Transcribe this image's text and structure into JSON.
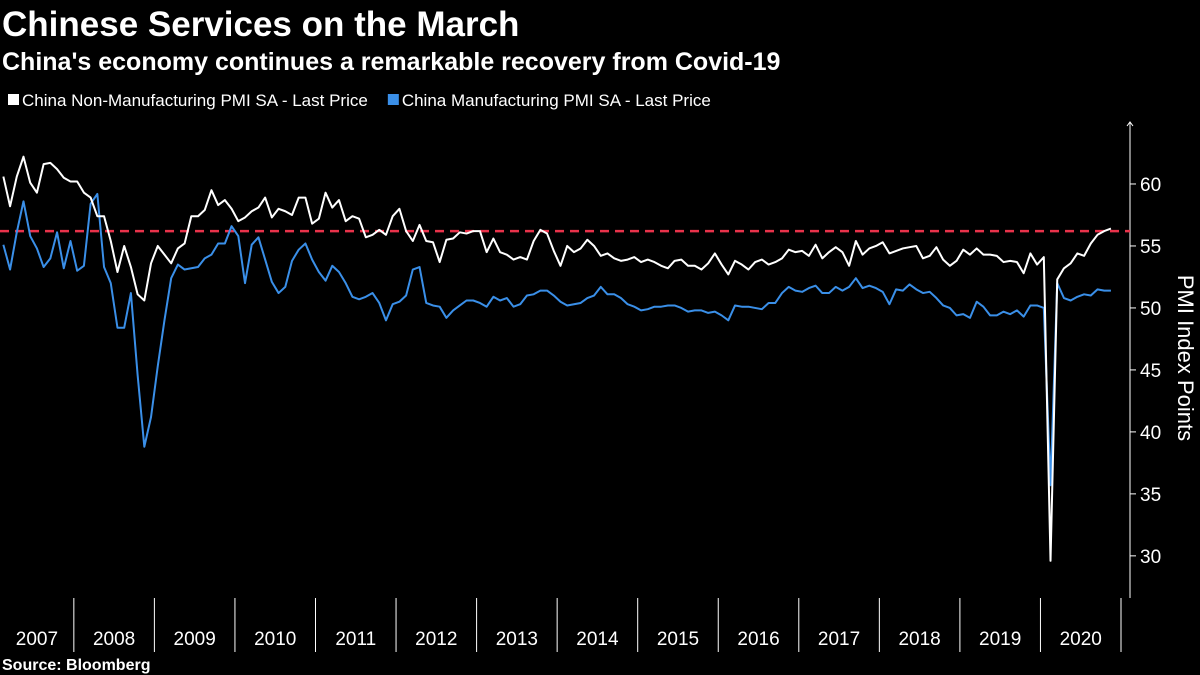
{
  "chart_data": {
    "type": "line",
    "title": "Chinese Services on the March",
    "subtitle": "China's economy continues a remarkable recovery from Covid-19",
    "source": "Source: Bloomberg",
    "y_axis_label": "PMI Index Points",
    "categories": [
      "2007",
      "2008",
      "2009",
      "2010",
      "2011",
      "2012",
      "2013",
      "2014",
      "2015",
      "2016",
      "2017",
      "2018",
      "2019",
      "2020"
    ],
    "ylim": [
      26.6,
      65
    ],
    "yticks": [
      30,
      35,
      40,
      45,
      50,
      55,
      60
    ],
    "reference_line": {
      "value": 56.2,
      "color": "#e8324a"
    },
    "background": "#000000",
    "series": [
      {
        "name": "China Non-Manufacturing PMI SA - Last Price",
        "color": "#ffffff",
        "values": [
          [
            60.6,
            58.2,
            60.6,
            62.2,
            60.1,
            59.3,
            61.6,
            61.7,
            61.2,
            60.5,
            60.2
          ],
          [
            60.2,
            59.3,
            58.9,
            57.4,
            57.4,
            55.4,
            52.9,
            55.0,
            53.3,
            51.1,
            50.6,
            53.6
          ],
          [
            55.0,
            54.3,
            53.6,
            54.8,
            55.2,
            57.4,
            57.4,
            57.9,
            59.5,
            58.3,
            58.7,
            58.0
          ],
          [
            57.0,
            57.3,
            57.8,
            58.1,
            58.9,
            57.3,
            58.0,
            57.8,
            57.5,
            58.9,
            58.9,
            56.8
          ],
          [
            57.2,
            59.3,
            58.1,
            58.7,
            57.0,
            57.4,
            57.2,
            55.7,
            55.9,
            56.3,
            55.9,
            57.4
          ],
          [
            58.0,
            56.2,
            55.4,
            56.7,
            55.4,
            55.3,
            53.7,
            55.5,
            55.6,
            56.1,
            56.0,
            56.2
          ],
          [
            56.2,
            54.5,
            55.6,
            54.5,
            54.3,
            53.9,
            54.1,
            53.9,
            55.4,
            56.3,
            56.0,
            54.6
          ],
          [
            53.4,
            55.0,
            54.5,
            54.8,
            55.5,
            55.0,
            54.2,
            54.4,
            54.0,
            53.8,
            53.9,
            54.1
          ],
          [
            53.7,
            53.9,
            53.7,
            53.4,
            53.2,
            53.8,
            53.9,
            53.4,
            53.4,
            53.1,
            53.6,
            54.4
          ],
          [
            53.5,
            52.7,
            53.8,
            53.5,
            53.1,
            53.7,
            53.9,
            53.5,
            53.7,
            54.0,
            54.7,
            54.5
          ],
          [
            54.6,
            54.2,
            55.1,
            54.0,
            54.5,
            54.9,
            54.5,
            53.4,
            55.4,
            54.3,
            54.8,
            55.0
          ],
          [
            55.3,
            54.4,
            54.6,
            54.8,
            54.9,
            55.0,
            54.0,
            54.2,
            54.9,
            53.9,
            53.4,
            53.8
          ],
          [
            54.7,
            54.3,
            54.8,
            54.3,
            54.3,
            54.2,
            53.7,
            53.8,
            53.7,
            52.8,
            54.4,
            53.5
          ],
          [
            54.1,
            29.6,
            52.3,
            53.2,
            53.6,
            54.4,
            54.2,
            55.2,
            55.9,
            56.2,
            56.4
          ]
        ]
      },
      {
        "name": "China Manufacturing PMI SA - Last Price",
        "color": "#3a8fe8",
        "values": [
          [
            55.1,
            53.1,
            56.1,
            58.6,
            55.8,
            54.8,
            53.3,
            54.0,
            56.1,
            53.2,
            55.4
          ],
          [
            53.0,
            53.4,
            58.4,
            59.2,
            53.3,
            52.0,
            48.4,
            48.4,
            51.2,
            44.6,
            38.8,
            41.2
          ],
          [
            45.3,
            49.0,
            52.4,
            53.5,
            53.1,
            53.2,
            53.3,
            54.0,
            54.3,
            55.2,
            55.2,
            56.6
          ],
          [
            55.8,
            52.0,
            55.1,
            55.7,
            53.9,
            52.1,
            51.2,
            51.7,
            53.8,
            54.7,
            55.2,
            53.9
          ],
          [
            52.9,
            52.2,
            53.4,
            52.9,
            52.0,
            50.9,
            50.7,
            50.9,
            51.2,
            50.4,
            49.0,
            50.3
          ],
          [
            50.5,
            51.0,
            53.1,
            53.3,
            50.4,
            50.2,
            50.1,
            49.2,
            49.8,
            50.2,
            50.6,
            50.6
          ],
          [
            50.4,
            50.1,
            50.9,
            50.6,
            50.8,
            50.1,
            50.3,
            51.0,
            51.1,
            51.4,
            51.4,
            51.0
          ],
          [
            50.5,
            50.2,
            50.3,
            50.4,
            50.8,
            51.0,
            51.7,
            51.1,
            51.1,
            50.8,
            50.3,
            50.1
          ],
          [
            49.8,
            49.9,
            50.1,
            50.1,
            50.2,
            50.2,
            50.0,
            49.7,
            49.8,
            49.8,
            49.6,
            49.7
          ],
          [
            49.4,
            49.0,
            50.2,
            50.1,
            50.1,
            50.0,
            49.9,
            50.4,
            50.4,
            51.2,
            51.7,
            51.4
          ],
          [
            51.3,
            51.6,
            51.8,
            51.2,
            51.2,
            51.7,
            51.4,
            51.7,
            52.4,
            51.6,
            51.8,
            51.6
          ],
          [
            51.3,
            50.3,
            51.5,
            51.4,
            51.9,
            51.5,
            51.2,
            51.3,
            50.8,
            50.2,
            50.0,
            49.4
          ],
          [
            49.5,
            49.2,
            50.5,
            50.1,
            49.4,
            49.4,
            49.7,
            49.5,
            49.8,
            49.3,
            50.2,
            50.2
          ],
          [
            50.0,
            35.7,
            52.0,
            50.8,
            50.6,
            50.9,
            51.1,
            51.0,
            51.5,
            51.4,
            51.4
          ]
        ]
      }
    ]
  }
}
